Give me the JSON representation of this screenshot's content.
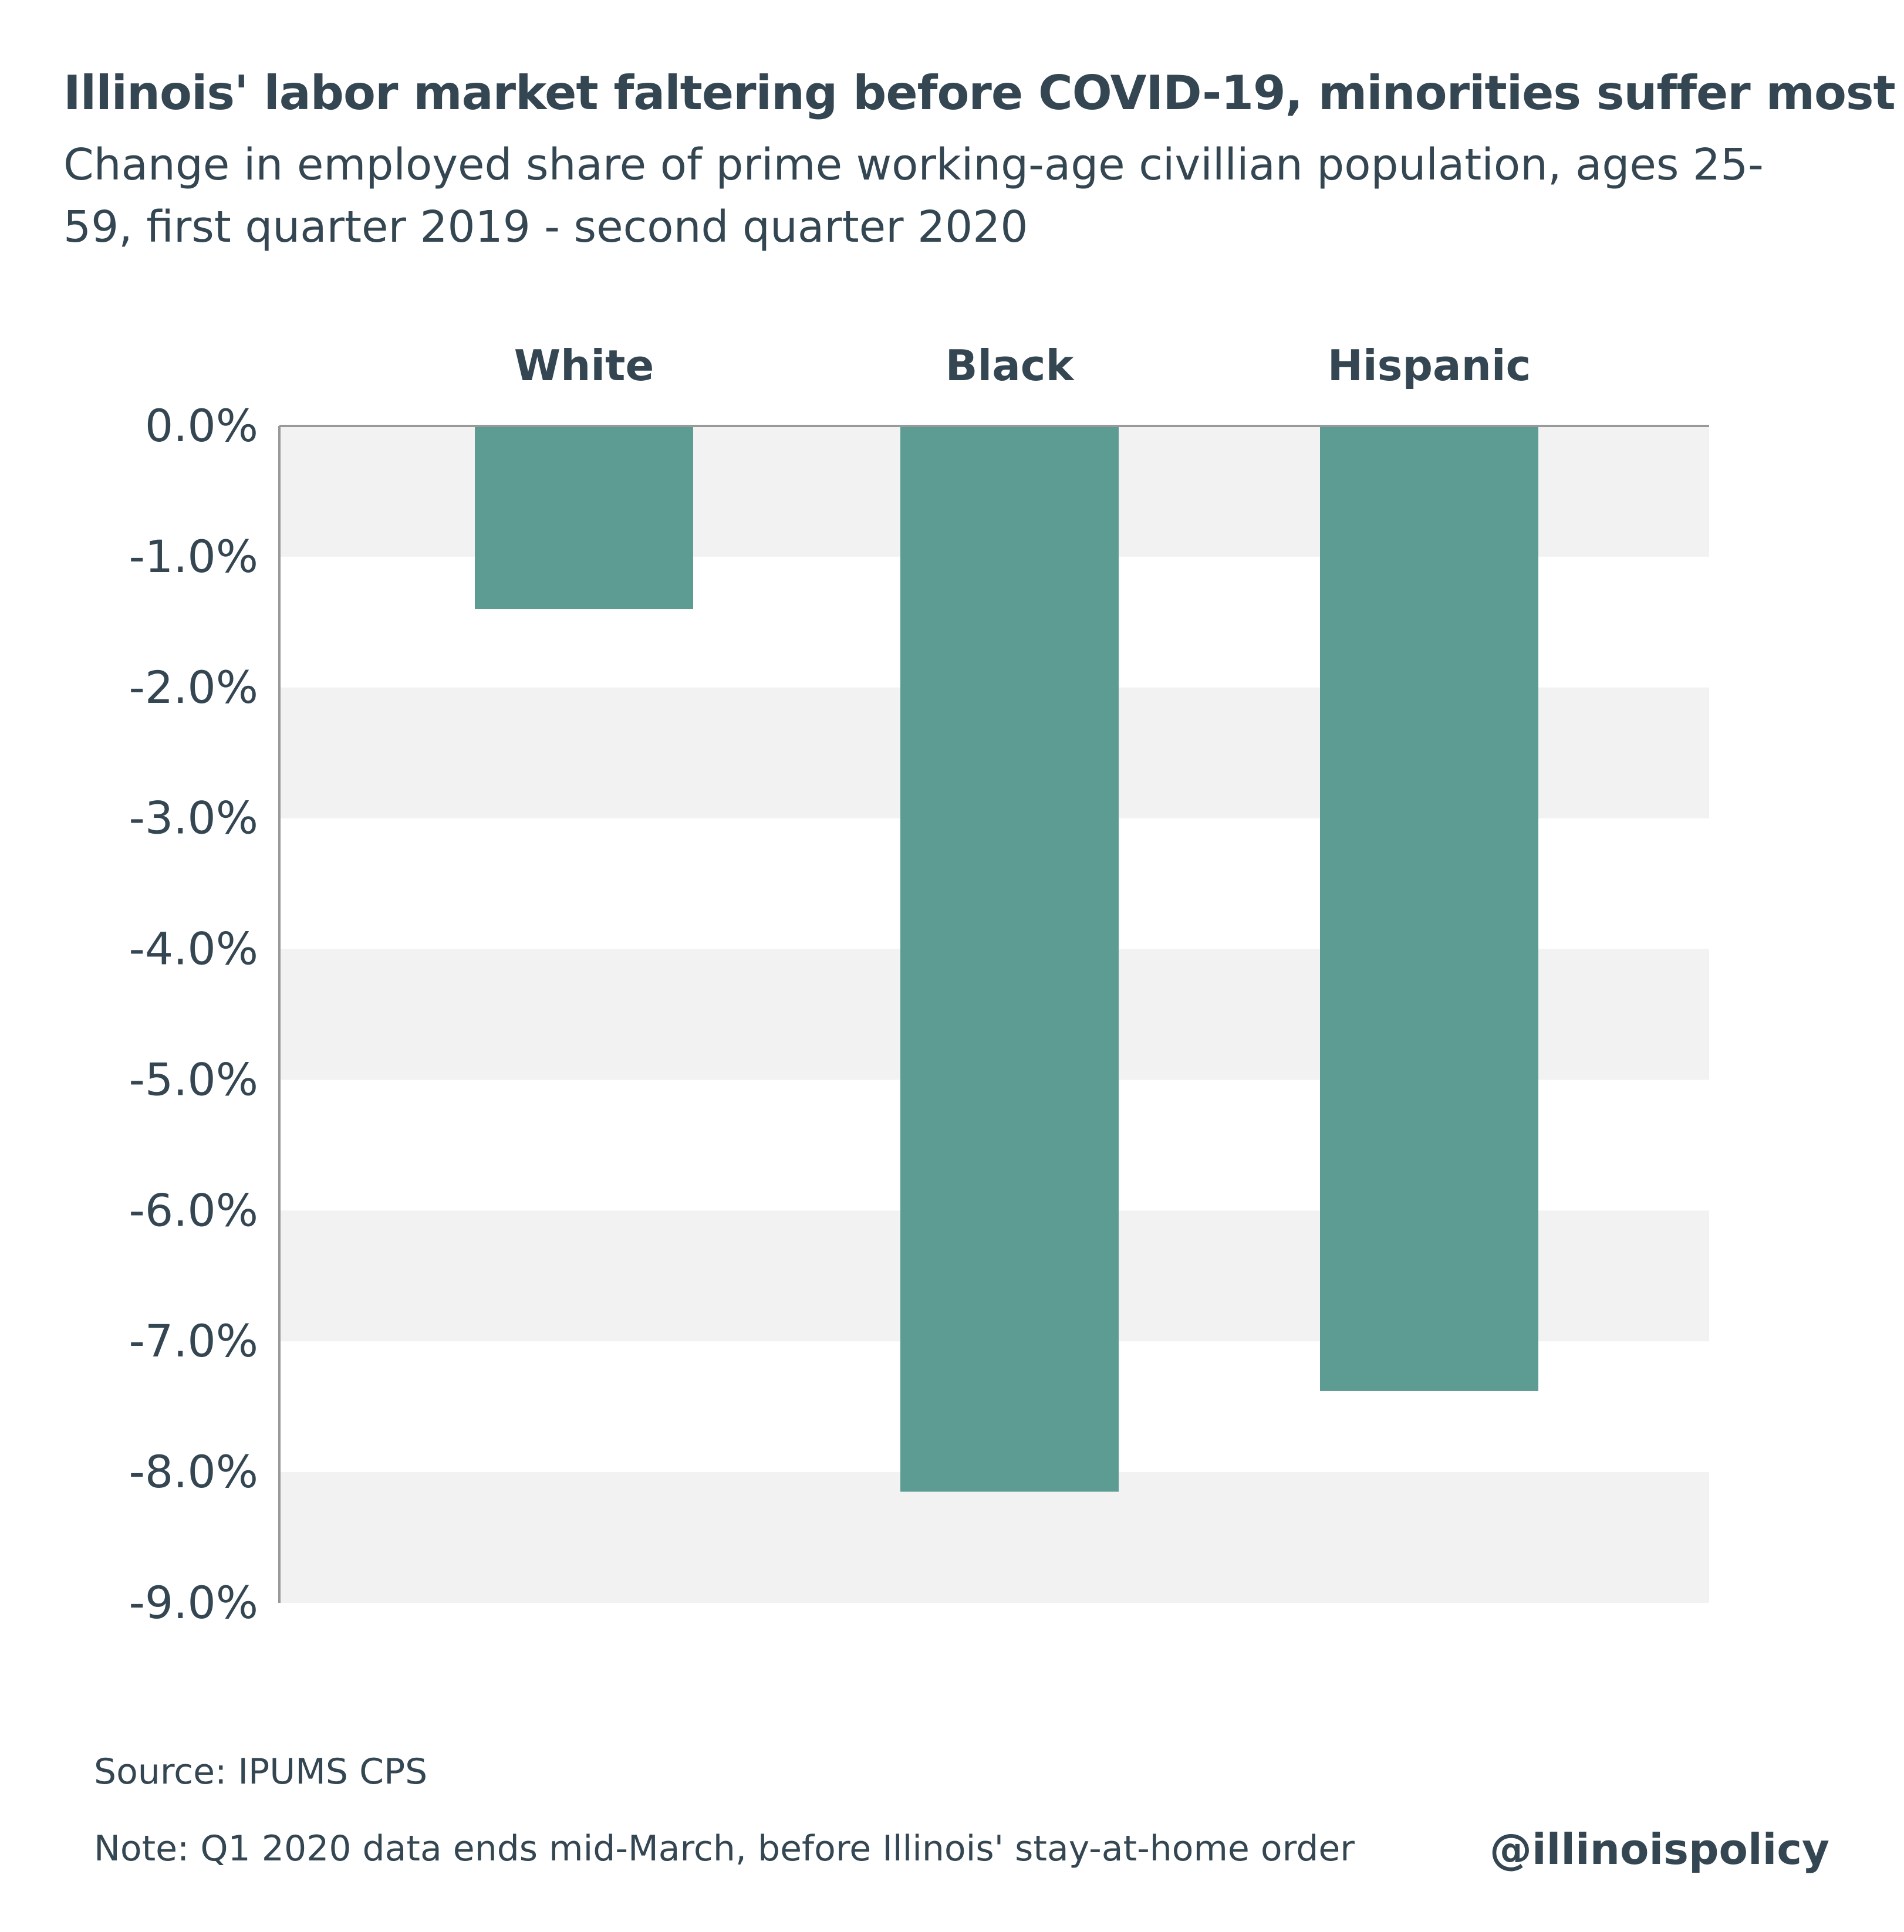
{
  "chart_data": {
    "type": "bar",
    "title": "Illinois' labor market faltering before COVID-19, minorities suffer most",
    "subtitle": "Change in employed share of prime working-age civillian population, ages 25-59, first quarter 2019 - second quarter 2020",
    "categories": [
      "White",
      "Black",
      "Hispanic"
    ],
    "values": [
      -1.4,
      -8.15,
      -7.38
    ],
    "ylim": [
      -9.0,
      0.0
    ],
    "yticks": [
      0,
      -1,
      -2,
      -3,
      -4,
      -5,
      -6,
      -7,
      -8,
      -9
    ],
    "ytick_labels": [
      "0.0%",
      "-1.0%",
      "-2.0%",
      "-3.0%",
      "-4.0%",
      "-5.0%",
      "-6.0%",
      "-7.0%",
      "-8.0%",
      "-9.0%"
    ],
    "category_labels_position": "top",
    "grid": "alternating bands",
    "colors": {
      "bar": "#5c9c92",
      "band": "#f2f2f2",
      "axis": "#999999",
      "text": "#334652"
    }
  },
  "footer": {
    "source": "Source: IPUMS CPS",
    "note": "Note: Q1 2020 data ends mid-March, before Illinois' stay-at-home order",
    "brand": "@illinoispolicy"
  }
}
